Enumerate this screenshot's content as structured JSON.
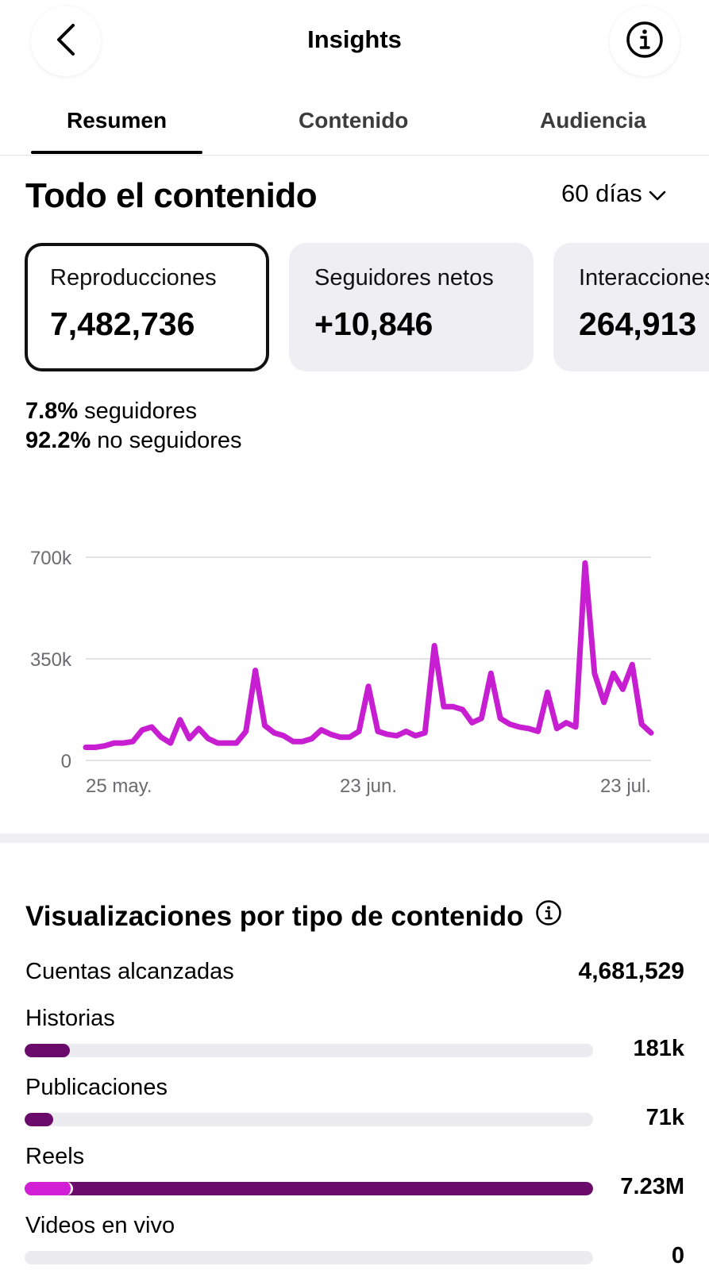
{
  "header": {
    "title": "Insights",
    "back_icon": "chevron-left-icon",
    "info_icon": "info-icon"
  },
  "tabs": [
    {
      "label": "Resumen",
      "active": true
    },
    {
      "label": "Contenido",
      "active": false
    },
    {
      "label": "Audiencia",
      "active": false
    }
  ],
  "section": {
    "title": "Todo el contenido",
    "range": "60 días"
  },
  "cards": [
    {
      "label": "Reproducciones",
      "value": "7,482,736"
    },
    {
      "label": "Seguidores netos",
      "value": "+10,846"
    },
    {
      "label": "Interacciones",
      "value": "264,913"
    }
  ],
  "breakdown": {
    "followers_pct": "7.8%",
    "followers_label": "seguidores",
    "nonfollowers_pct": "92.2%",
    "nonfollowers_label": "no seguidores"
  },
  "chart_data": {
    "type": "line",
    "y_ticks": [
      "700k",
      "350k",
      "0"
    ],
    "x_ticks": [
      "25 may.",
      "23 jun.",
      "23 jul."
    ],
    "ylim": [
      0,
      700000
    ],
    "grid": true,
    "color": "#c81ed2",
    "series": [
      {
        "values": [
          45000,
          45000,
          50000,
          60000,
          60000,
          65000,
          105000,
          115000,
          80000,
          60000,
          140000,
          75000,
          110000,
          75000,
          60000,
          60000,
          60000,
          100000,
          310000,
          120000,
          95000,
          85000,
          65000,
          65000,
          75000,
          105000,
          90000,
          80000,
          80000,
          100000,
          255000,
          100000,
          90000,
          85000,
          100000,
          85000,
          95000,
          395000,
          185000,
          185000,
          175000,
          130000,
          145000,
          300000,
          145000,
          125000,
          115000,
          110000,
          100000,
          235000,
          110000,
          130000,
          115000,
          680000,
          300000,
          200000,
          300000,
          245000,
          330000,
          125000,
          95000
        ]
      }
    ]
  },
  "visualizations": {
    "title": "Visualizaciones por tipo de contenido",
    "info_icon": "info-icon",
    "accounts_label": "Cuentas alcanzadas",
    "accounts_value": "4,681,529",
    "rows": [
      {
        "label": "Historias",
        "value": "181k",
        "fill": 0.08,
        "split": 0.0
      },
      {
        "label": "Publicaciones",
        "value": "71k",
        "fill": 0.05,
        "split": 0.0
      },
      {
        "label": "Reels",
        "value": "7.23M",
        "fill": 1.0,
        "split": 0.085
      },
      {
        "label": "Videos en vivo",
        "value": "0",
        "fill": 0.0,
        "split": 0.0
      }
    ],
    "colors": {
      "dark": "#6a0a6b",
      "light": "#d21ed5",
      "track": "#ecebf0"
    }
  }
}
